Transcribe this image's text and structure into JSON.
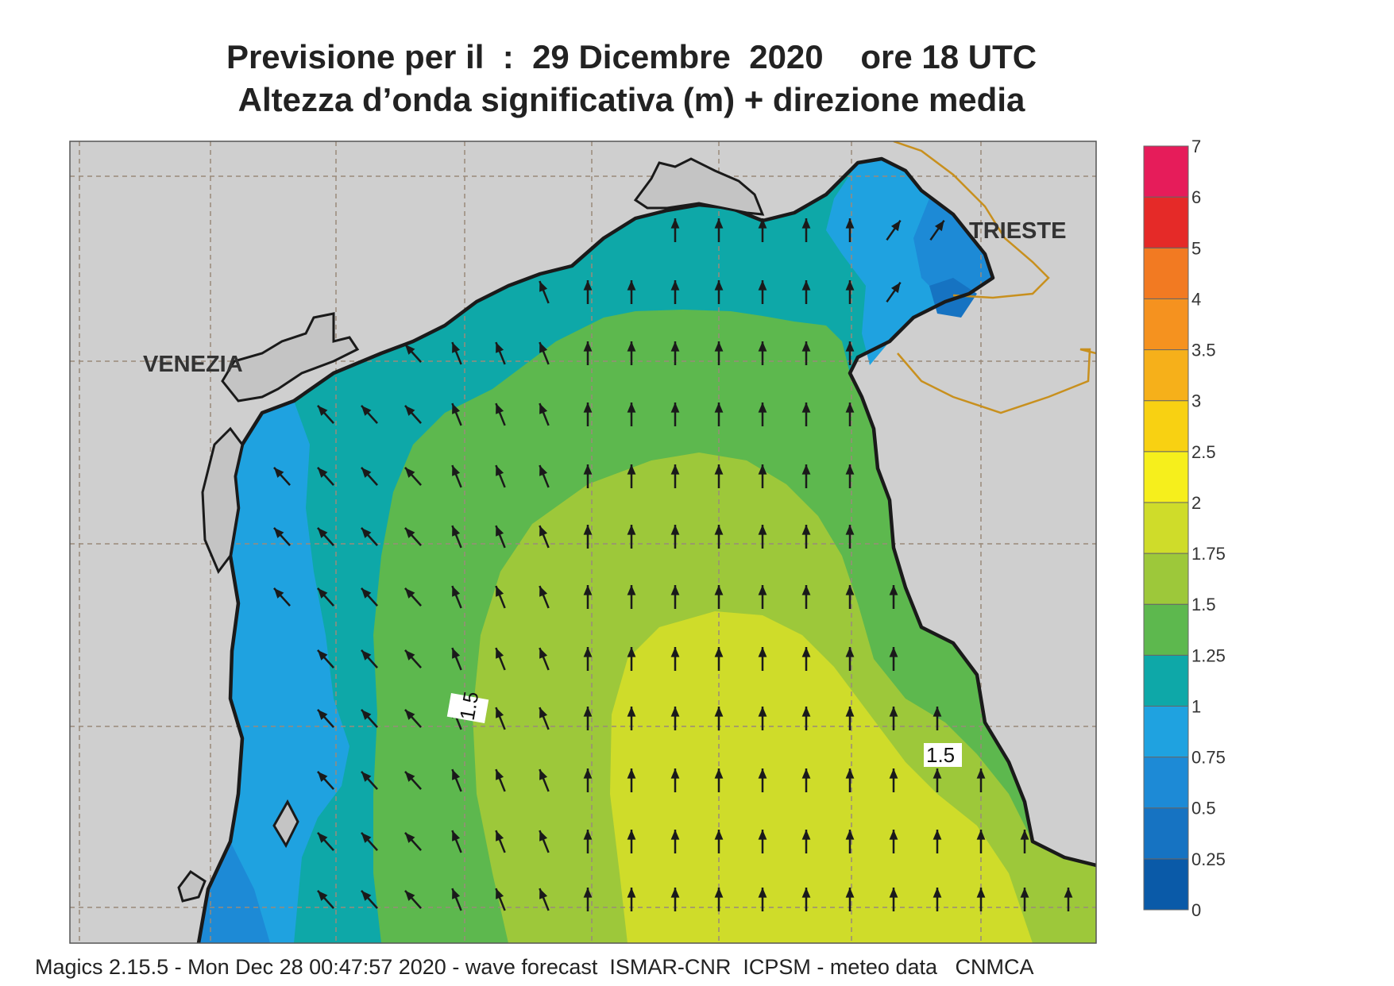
{
  "title_line1": "Previsione per il  :  29 Dicembre  2020    ore 18 UTC",
  "title_line2": "Altezza d’onda significativa (m) + direzione media",
  "cities": [
    "VENEZIA",
    "TRIESTE"
  ],
  "contour_labels": [
    "1.5",
    "1.5"
  ],
  "colorbar": {
    "labels": [
      "0",
      "0.25",
      "0.5",
      "0.75",
      "1",
      "1.25",
      "1.5",
      "1.75",
      "2",
      "2.5",
      "3",
      "3.5",
      "4",
      "5",
      "6",
      "7"
    ],
    "colors": [
      "#0a5aa8",
      "#1673c2",
      "#1d8ad6",
      "#1fa2e0",
      "#0ea8a8",
      "#5db84e",
      "#9dc83a",
      "#cfdc2a",
      "#f6ef1c",
      "#f8d112",
      "#f6b01a",
      "#f5921f",
      "#f27a22",
      "#e52a28",
      "#e61c5a"
    ]
  },
  "legend_units": "m",
  "footer": "Magics 2.15.5 - Mon Dec 28 00:47:57 2020 - wave forecast  ISMAR-CNR  ICPSM - meteo data   CNMCA",
  "colors": {
    "land": "#cfcfcf",
    "coast": "#1a1a1a",
    "border": "#c8901e",
    "grid": "#9a8a7a"
  }
}
